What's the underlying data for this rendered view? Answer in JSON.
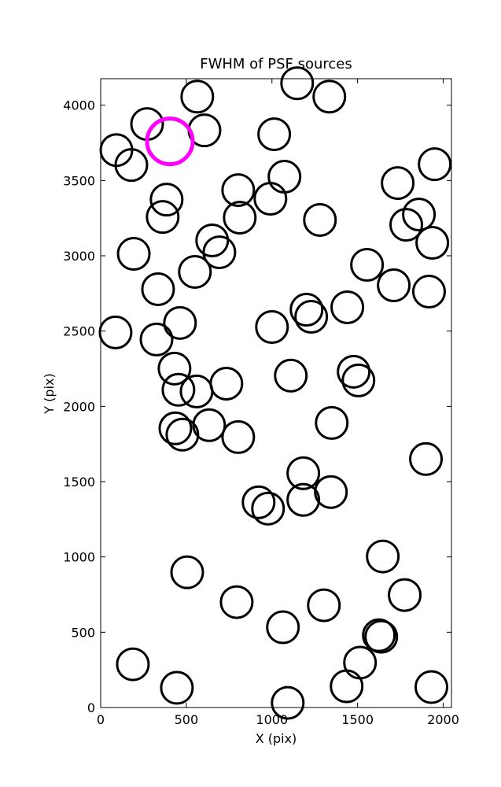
{
  "chart_data": {
    "type": "scatter",
    "title": "FWHM of PSF sources",
    "xlabel": "X (pix)",
    "ylabel": "Y (pix)",
    "xlim": [
      0,
      2048
    ],
    "ylim": [
      0,
      4176
    ],
    "xticks": [
      0,
      500,
      1000,
      1500,
      2000
    ],
    "yticks": [
      0,
      500,
      1000,
      1500,
      2000,
      2500,
      3000,
      3500,
      4000
    ],
    "series": [
      {
        "color": "#000000",
        "x": [
          92,
          179,
          271,
          564,
          606,
          1147,
          1335,
          1013,
          1073,
          803,
          991,
          812,
          385,
          362,
          651,
          693,
          193,
          550,
          335,
          1280,
          1734,
          1858,
          1784,
          1950,
          1936,
          1555,
          1711,
          1917,
          1440,
          1202,
          1229,
          1000,
          87,
          463,
          326,
          431,
          454,
          560,
          734,
          1110,
          1477,
          1505,
          1349,
          436,
          477,
          633,
          803,
          1899,
          1183,
          1183,
          1344,
          922,
          977,
          1647,
          505,
          794,
          1775,
          1303,
          1064,
          1624,
          1638,
          1514,
          188,
          445,
          1436,
          1931,
          1092
        ],
        "y": [
          3702,
          3603,
          3875,
          4057,
          3833,
          4146,
          4057,
          3807,
          3525,
          3436,
          3379,
          3253,
          3373,
          3258,
          3102,
          3023,
          3013,
          2893,
          2778,
          3238,
          3483,
          3274,
          3206,
          3608,
          3086,
          2940,
          2804,
          2762,
          2658,
          2642,
          2595,
          2527,
          2491,
          2554,
          2444,
          2251,
          2110,
          2099,
          2151,
          2204,
          2230,
          2172,
          1890,
          1854,
          1812,
          1875,
          1796,
          1650,
          1556,
          1379,
          1431,
          1363,
          1321,
          1003,
          898,
          700,
          747,
          679,
          533,
          480,
          470,
          298,
          287,
          131,
          141,
          136,
          31
        ]
      },
      {
        "color": "#ff00ff",
        "x": [
          404
        ],
        "y": [
          3760
        ]
      }
    ]
  }
}
